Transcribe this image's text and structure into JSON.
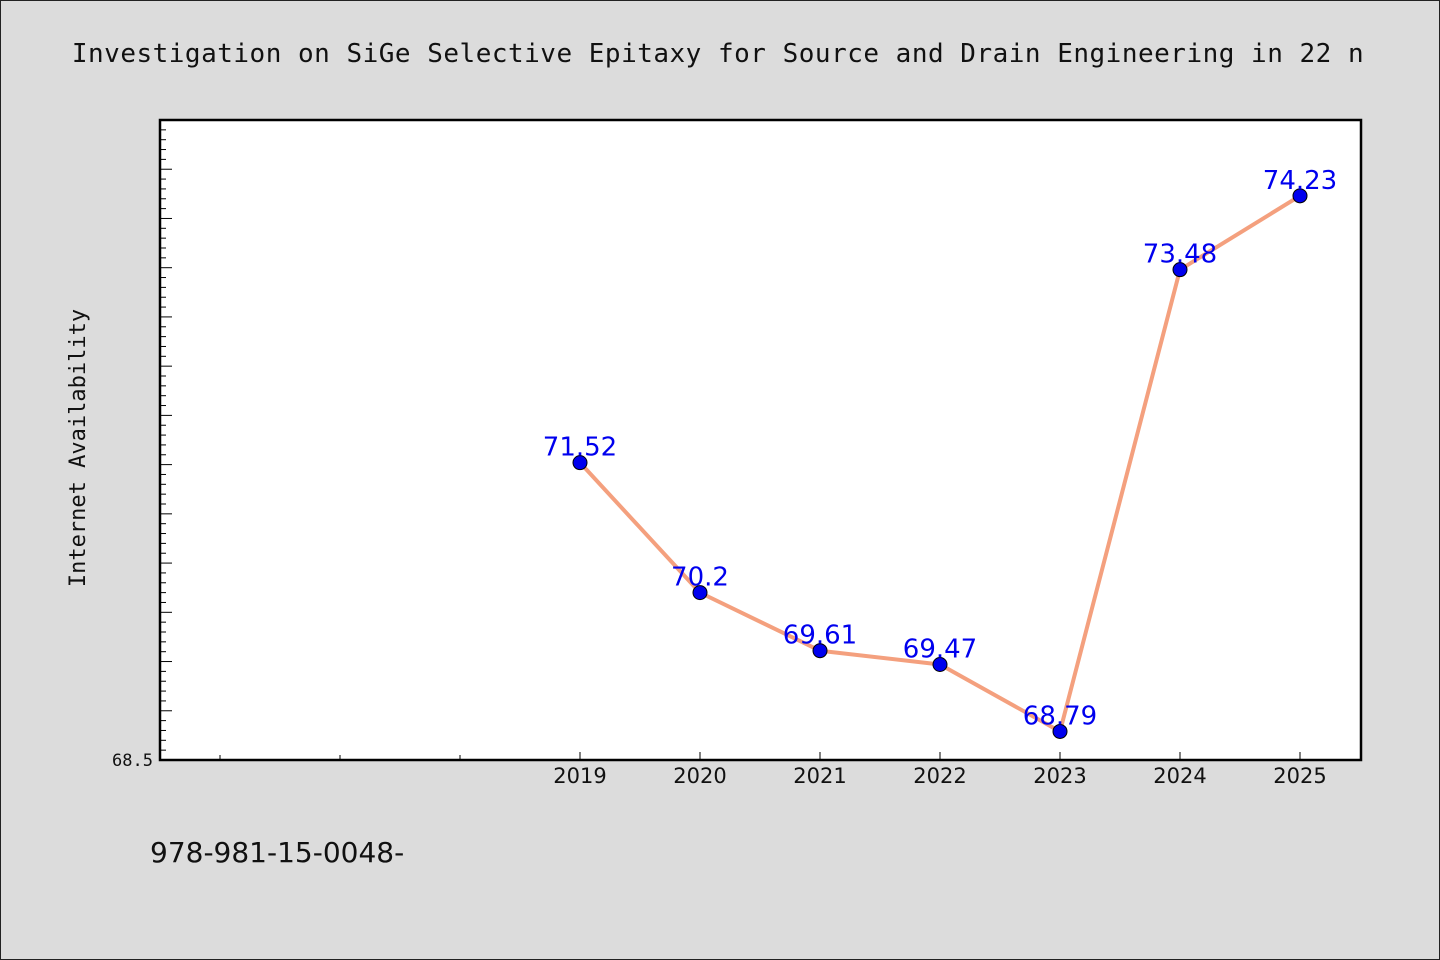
{
  "title": "Investigation on SiGe Selective Epitaxy for Source and Drain Engineering in 22 n",
  "footer": "978-981-15-0048-",
  "chart_data": {
    "type": "line",
    "title": "Investigation on SiGe Selective Epitaxy for Source and Drain Engineering in 22 n",
    "xlabel": "",
    "ylabel": "Internet Availability",
    "categories": [
      "2019",
      "2020",
      "2021",
      "2022",
      "2023",
      "2024",
      "2025"
    ],
    "values": [
      71.52,
      70.2,
      69.61,
      69.47,
      68.79,
      73.48,
      74.23
    ],
    "data_labels": [
      "71.52",
      "70.2",
      "69.61",
      "69.47",
      "68.79",
      "73.48",
      "74.23"
    ],
    "y_tick_label": "68.5",
    "ylim": [
      68.5,
      75.0
    ],
    "grid": false,
    "legend": "none",
    "line_color": "#f4a07e",
    "marker_color": "#0000ee",
    "label_color": "#0000ee"
  }
}
